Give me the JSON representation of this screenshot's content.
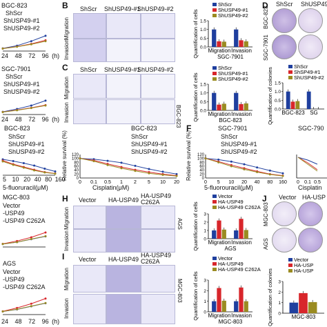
{
  "panels": {
    "A": {
      "ylabel_tops": [
        "BGC-823",
        "SGC-7901"
      ],
      "legend_a1": [
        "ShScr",
        "ShUSP49-#1",
        "ShUSP49-#2"
      ],
      "legend_a2": [
        "ShScr",
        "ShUSP49-#1",
        "ShUSP49-#2"
      ],
      "ticks": [
        "24",
        "48",
        "72",
        "96"
      ],
      "time_unit": "(h)"
    },
    "B": {
      "label": "B",
      "groups": [
        "ShScr",
        "ShUSP49-#1",
        "ShUSP49-#2"
      ],
      "rows": [
        "Migration",
        "Invasion"
      ],
      "chart_ylabel": "Quantification of cells",
      "cell_line": "SGC-7901",
      "legend": [
        "ShScr",
        "ShUSP49-#1",
        "ShUSP49-#2"
      ],
      "x": [
        "Migration",
        "Invasion"
      ]
    },
    "C": {
      "label": "C",
      "groups": [
        "ShScr",
        "ShUSP49-#1",
        "ShUSP49-#2"
      ],
      "rows": [
        "Migration",
        "Invasion"
      ],
      "side": "BGC-823",
      "chart_ylabel": "Quantification of cells",
      "cell_line": "BGC-823",
      "legend": [
        "ShScr",
        "ShUSP49-#1",
        "ShUSP49-#2"
      ],
      "x": [
        "Migration",
        "Invasion"
      ]
    },
    "D": {
      "label": "D",
      "groups": [
        "ShScr",
        "ShUSP49-#1"
      ],
      "rows": [
        "BGC-823",
        "SGC-7901"
      ],
      "chart_ylabel": "Quantification of colonies",
      "legend": [
        "ShScr",
        "ShSP49-#1",
        "ShUSP49-#2"
      ],
      "x": [
        "BGC-823",
        "SG"
      ]
    },
    "E": {
      "title": "BGC-823",
      "legend": [
        "ShScr",
        "ShUSP49-#1",
        "ShUSP49-#2"
      ],
      "xlabel_left": "5-fluoruracil(μM)",
      "xticks_left": [
        "5",
        "10",
        "20",
        "40",
        "80",
        "160"
      ],
      "ylabel": "Relative survival (%)",
      "xlabel_right": "Cisplatin(μM)",
      "xticks_right": [
        "0",
        "0.1",
        "0.5",
        "1",
        "2",
        "5",
        "10",
        "20"
      ],
      "yticks": [
        "0",
        "20",
        "40",
        "60",
        "80",
        "100",
        "120"
      ],
      "title_right": "BGC-823"
    },
    "F": {
      "label": "F",
      "title": "SGC-7901",
      "legend": [
        "ShScr",
        "ShUSP49-#1",
        "ShUSP49-#2"
      ],
      "ylabel": "Relative survival (%)",
      "xlabel": "5-fluorouracil(μM)",
      "xticks": [
        "0",
        "5",
        "10",
        "20",
        "40",
        "80",
        "160"
      ],
      "yticks": [
        "0",
        "20",
        "40",
        "60",
        "80",
        "100",
        "120"
      ],
      "title_right": "SGC-790",
      "xlabel_right": "Cisplatin",
      "xticks_right": [
        "0",
        "0.1",
        "0.5"
      ]
    },
    "G": {
      "title1": "MGC-803",
      "legend1": [
        "Vector",
        "-USP49",
        "-USP49 C262A"
      ],
      "title2": "AGS",
      "legend2": [
        "Vector",
        "-USP49",
        "-USP49 C262A"
      ],
      "ticks": [
        "24",
        "48",
        "72",
        "96"
      ],
      "time_unit": "(h)"
    },
    "H": {
      "label": "H",
      "groups": [
        "Vector",
        "HA-USP49",
        "HA-USP49\nC262A"
      ],
      "rows": [
        "Migration",
        "Invasion"
      ],
      "side": "AGS",
      "chart_ylabel": "Quantification of cells",
      "cell_line": "AGS",
      "legend": [
        "Vector",
        "HA-USP49",
        "HA-USP49 C262A"
      ],
      "x": [
        "Migration",
        "Invasion"
      ]
    },
    "I": {
      "label": "I",
      "groups": [
        "Vector",
        "HA-USP49",
        "HA-USP49\nC262A"
      ],
      "rows": [
        "Migration",
        "Invasion"
      ],
      "side": "MGC-803",
      "chart_ylabel": "Quantification of cells",
      "cell_line": "MGC-803",
      "legend": [
        "Vector",
        "HA-USP49",
        "HA-USP49 C262A"
      ],
      "x": [
        "Migration",
        "Invasion"
      ]
    },
    "J": {
      "label": "J",
      "groups": [
        "Vector",
        "HA-USP"
      ],
      "rows": [
        "MGC-803",
        "AGS"
      ],
      "chart_ylabel": "Quantification of colonies",
      "legend": [
        "Vector",
        "HA-USP",
        "HA-USP"
      ],
      "x": [
        "MGC-803"
      ]
    }
  },
  "colors": {
    "blue": "#1f3f9e",
    "red": "#d8262b",
    "olive": "#9a8b21",
    "black": "#111111"
  },
  "chart_data": [
    {
      "type": "bar",
      "panel": "B",
      "categories": [
        "Migration",
        "Invasion"
      ],
      "series": [
        {
          "name": "ShScr",
          "values": [
            1.0,
            1.0
          ]
        },
        {
          "name": "ShUSP49-#1",
          "values": [
            0.32,
            0.38
          ]
        },
        {
          "name": "ShUSP49-#2",
          "values": [
            0.3,
            0.32
          ]
        }
      ],
      "ylabel": "Quantification of cells",
      "xlabel": "SGC-7901",
      "ylim": [
        0,
        1.5
      ],
      "yticks": [
        "0.0",
        "0.5",
        "1.0",
        "1.5"
      ]
    },
    {
      "type": "bar",
      "panel": "C",
      "categories": [
        "Migration",
        "Invasion"
      ],
      "series": [
        {
          "name": "ShScr",
          "values": [
            1.0,
            1.0
          ]
        },
        {
          "name": "ShUSP49-#1",
          "values": [
            0.33,
            0.36
          ]
        },
        {
          "name": "ShUSP49-#2",
          "values": [
            0.38,
            0.4
          ]
        }
      ],
      "ylabel": "Quantification of cells",
      "xlabel": "BGC-823",
      "ylim": [
        0,
        1.5
      ],
      "yticks": [
        "0.0",
        "0.5",
        "1.0",
        "1.5"
      ]
    },
    {
      "type": "bar",
      "panel": "D",
      "categories": [
        "BGC-823",
        "SG"
      ],
      "series": [
        {
          "name": "ShScr",
          "values": [
            1.0,
            1.0
          ]
        },
        {
          "name": "ShSP49-#1",
          "values": [
            0.42,
            0.0
          ]
        },
        {
          "name": "ShUSP49-#2",
          "values": [
            0.45,
            0.0
          ]
        }
      ],
      "ylabel": "Quantification of colonies",
      "ylim": [
        0,
        1.5
      ],
      "yticks": [
        "0.0",
        "0.5",
        "1.0",
        "1.5"
      ]
    },
    {
      "type": "bar",
      "panel": "H",
      "categories": [
        "Migration",
        "Invasion"
      ],
      "series": [
        {
          "name": "Vector",
          "values": [
            1.0,
            1.0
          ]
        },
        {
          "name": "HA-USP49",
          "values": [
            2.2,
            2.4
          ]
        },
        {
          "name": "HA-USP49 C262A",
          "values": [
            1.1,
            1.05
          ]
        }
      ],
      "ylabel": "Quantification of cells",
      "xlabel": "AGS",
      "ylim": [
        0,
        3
      ],
      "yticks": [
        "0",
        "1",
        "2",
        "3"
      ]
    },
    {
      "type": "bar",
      "panel": "I",
      "categories": [
        "Migration",
        "Invasion"
      ],
      "series": [
        {
          "name": "Vector",
          "values": [
            1.0,
            1.0
          ]
        },
        {
          "name": "HA-USP49",
          "values": [
            2.25,
            2.3
          ]
        },
        {
          "name": "HA-USP49 C262A",
          "values": [
            1.05,
            1.0
          ]
        }
      ],
      "ylabel": "Quantification of cells",
      "xlabel": "MGC-803",
      "ylim": [
        0,
        3
      ],
      "yticks": [
        "0",
        "1",
        "2",
        "3"
      ]
    },
    {
      "type": "bar",
      "panel": "J",
      "categories": [
        "MGC-803"
      ],
      "series": [
        {
          "name": "Vector",
          "values": [
            1.0
          ]
        },
        {
          "name": "HA-USP",
          "values": [
            1.9
          ]
        },
        {
          "name": "HA-USP",
          "values": [
            1.05
          ]
        }
      ],
      "ylabel": "Quantification of colonies",
      "ylim": [
        0,
        3
      ],
      "yticks": [
        "0",
        "1",
        "2",
        "3"
      ]
    },
    {
      "type": "line",
      "panel": "E-left",
      "x": [
        5,
        10,
        20,
        40,
        80,
        160
      ],
      "series": [
        {
          "name": "ShScr",
          "values": [
            92,
            82,
            70,
            56,
            38,
            22
          ]
        },
        {
          "name": "ShUSP49-#1",
          "values": [
            85,
            64,
            48,
            32,
            18,
            10
          ]
        },
        {
          "name": "ShUSP49-#2",
          "values": [
            80,
            60,
            44,
            28,
            16,
            9
          ]
        }
      ],
      "xlabel": "5-fluoruracil(μM)",
      "ylim": [
        0,
        120
      ]
    },
    {
      "type": "line",
      "panel": "E-right",
      "x": [
        0,
        0.1,
        0.5,
        1,
        2,
        5,
        10,
        20
      ],
      "series": [
        {
          "name": "ShScr",
          "values": [
            100,
            96,
            88,
            78,
            62,
            46,
            32,
            20
          ]
        },
        {
          "name": "ShUSP49-#1",
          "values": [
            100,
            90,
            72,
            56,
            42,
            30,
            20,
            12
          ]
        },
        {
          "name": "ShUSP49-#2",
          "values": [
            100,
            86,
            66,
            50,
            36,
            24,
            16,
            10
          ]
        }
      ],
      "title": "BGC-823",
      "xlabel": "Cisplatin(μM)",
      "ylabel": "Relative survival (%)",
      "ylim": [
        0,
        120
      ]
    },
    {
      "type": "line",
      "panel": "F",
      "x": [
        0,
        5,
        10,
        20,
        40,
        80,
        160
      ],
      "series": [
        {
          "name": "ShScr",
          "values": [
            100,
            94,
            84,
            70,
            54,
            38,
            24
          ]
        },
        {
          "name": "ShUSP49-#1",
          "values": [
            100,
            84,
            66,
            50,
            34,
            20,
            12
          ]
        },
        {
          "name": "ShUSP49-#2",
          "values": [
            100,
            80,
            60,
            44,
            30,
            18,
            10
          ]
        }
      ],
      "title": "SGC-7901",
      "xlabel": "5-fluorouracil(μM)",
      "ylabel": "Relative survival (%)",
      "ylim": [
        0,
        120
      ]
    },
    {
      "type": "line",
      "panel": "A-top",
      "x": [
        24,
        48,
        72,
        96
      ],
      "series": [
        {
          "name": "ShScr",
          "values": [
            0.3,
            0.6,
            1.1,
            1.7
          ]
        },
        {
          "name": "ShUSP49-#1",
          "values": [
            0.28,
            0.5,
            0.8,
            1.2
          ]
        },
        {
          "name": "ShUSP49-#2",
          "values": [
            0.27,
            0.48,
            0.75,
            1.1
          ]
        }
      ],
      "ylim": [
        0,
        2
      ]
    },
    {
      "type": "line",
      "panel": "A-bottom",
      "x": [
        24,
        48,
        72,
        96
      ],
      "series": [
        {
          "name": "ShScr",
          "values": [
            0.3,
            0.62,
            1.0,
            1.55
          ]
        },
        {
          "name": "ShUSP49-#1",
          "values": [
            0.28,
            0.5,
            0.75,
            1.05
          ]
        },
        {
          "name": "ShUSP49-#2",
          "values": [
            0.27,
            0.47,
            0.72,
            1.0
          ]
        }
      ],
      "ylim": [
        0,
        2
      ]
    },
    {
      "type": "line",
      "panel": "G-top",
      "x": [
        24,
        48,
        72,
        96
      ],
      "series": [
        {
          "name": "Vector",
          "values": [
            0.3,
            0.5,
            0.8,
            1.1
          ]
        },
        {
          "name": "-USP49",
          "values": [
            0.32,
            0.62,
            1.0,
            1.5
          ]
        },
        {
          "name": "-USP49 C262A",
          "values": [
            0.3,
            0.5,
            0.82,
            1.12
          ]
        }
      ],
      "ylim": [
        0,
        2
      ]
    },
    {
      "type": "line",
      "panel": "G-bottom",
      "x": [
        24,
        48,
        72,
        96
      ],
      "series": [
        {
          "name": "Vector",
          "values": [
            0.3,
            0.5,
            0.8,
            1.1
          ]
        },
        {
          "name": "-USP49",
          "values": [
            0.32,
            0.64,
            1.05,
            1.55
          ]
        },
        {
          "name": "-USP49 C262A",
          "values": [
            0.3,
            0.52,
            0.82,
            1.12
          ]
        }
      ],
      "ylim": [
        0,
        2
      ]
    }
  ]
}
